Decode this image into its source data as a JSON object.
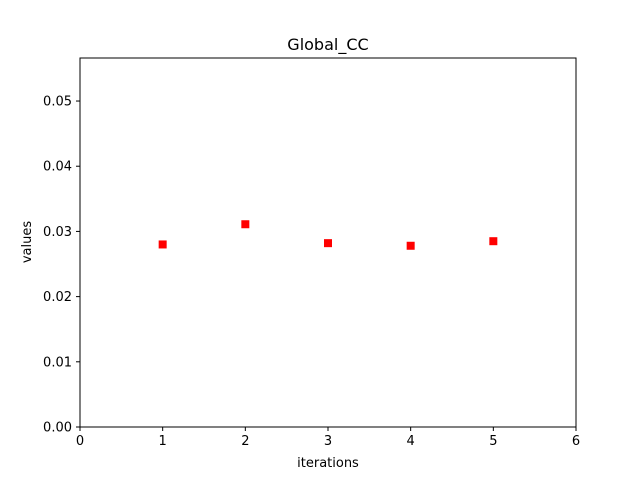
{
  "chart_data": {
    "type": "scatter",
    "title": "Global_CC",
    "xlabel": "iterations",
    "ylabel": "values",
    "xlim": [
      0,
      6
    ],
    "ylim": [
      0,
      0.0566
    ],
    "xticks": [
      0,
      1,
      2,
      3,
      4,
      5,
      6
    ],
    "xtick_labels": [
      "0",
      "1",
      "2",
      "3",
      "4",
      "5",
      "6"
    ],
    "yticks": [
      0,
      0.01,
      0.02,
      0.03,
      0.04,
      0.05
    ],
    "ytick_labels": [
      "0.00",
      "0.01",
      "0.02",
      "0.03",
      "0.04",
      "0.05"
    ],
    "grid": false,
    "marker": "square",
    "color": "#ff0000",
    "series": [
      {
        "name": "Global_CC",
        "x": [
          1,
          2,
          3,
          4,
          5
        ],
        "y": [
          0.028,
          0.0311,
          0.0282,
          0.0278,
          0.0285
        ]
      }
    ]
  }
}
